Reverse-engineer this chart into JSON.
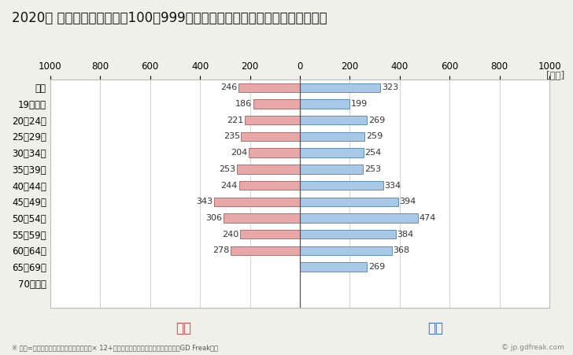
{
  "title": "2020年 民間企業（従業者数100〜999人）フルタイム労働者の男女別平均年収",
  "ylabel_unit": "[万円]",
  "categories": [
    "全体",
    "19歳以下",
    "20〜24歳",
    "25〜29歳",
    "30〜34歳",
    "35〜39歳",
    "40〜44歳",
    "45〜49歳",
    "50〜54歳",
    "55〜59歳",
    "60〜64歳",
    "65〜69歳",
    "70歳以上"
  ],
  "female_values": [
    246,
    186,
    221,
    235,
    204,
    253,
    244,
    343,
    306,
    240,
    278,
    0,
    0
  ],
  "male_values": [
    323,
    199,
    269,
    259,
    254,
    253,
    334,
    394,
    474,
    384,
    368,
    269,
    0
  ],
  "female_color": "#e8a8a8",
  "male_color": "#a8c8e8",
  "female_edge_color": "#b07070",
  "male_edge_color": "#6090b8",
  "xlim": [
    -1000,
    1000
  ],
  "xticks": [
    -1000,
    -800,
    -600,
    -400,
    -200,
    0,
    200,
    400,
    600,
    800,
    1000
  ],
  "xticklabels": [
    "1000",
    "800",
    "600",
    "400",
    "200",
    "0",
    "200",
    "400",
    "600",
    "800",
    "1000"
  ],
  "female_label": "女性",
  "male_label": "男性",
  "female_label_color": "#cc4444",
  "male_label_color": "#3366cc",
  "footnote": "※ 年収=「きまって支給する現金給与額」× 12+「年間賞与その他特別給与額」としてGD Freak推計",
  "watermark": "© jp.gdfreak.com",
  "background_color": "#f0f0eb",
  "plot_bg_color": "#ffffff",
  "grid_color": "#cccccc",
  "title_fontsize": 12,
  "tick_fontsize": 8.5,
  "bar_height": 0.55,
  "value_fontsize": 8
}
